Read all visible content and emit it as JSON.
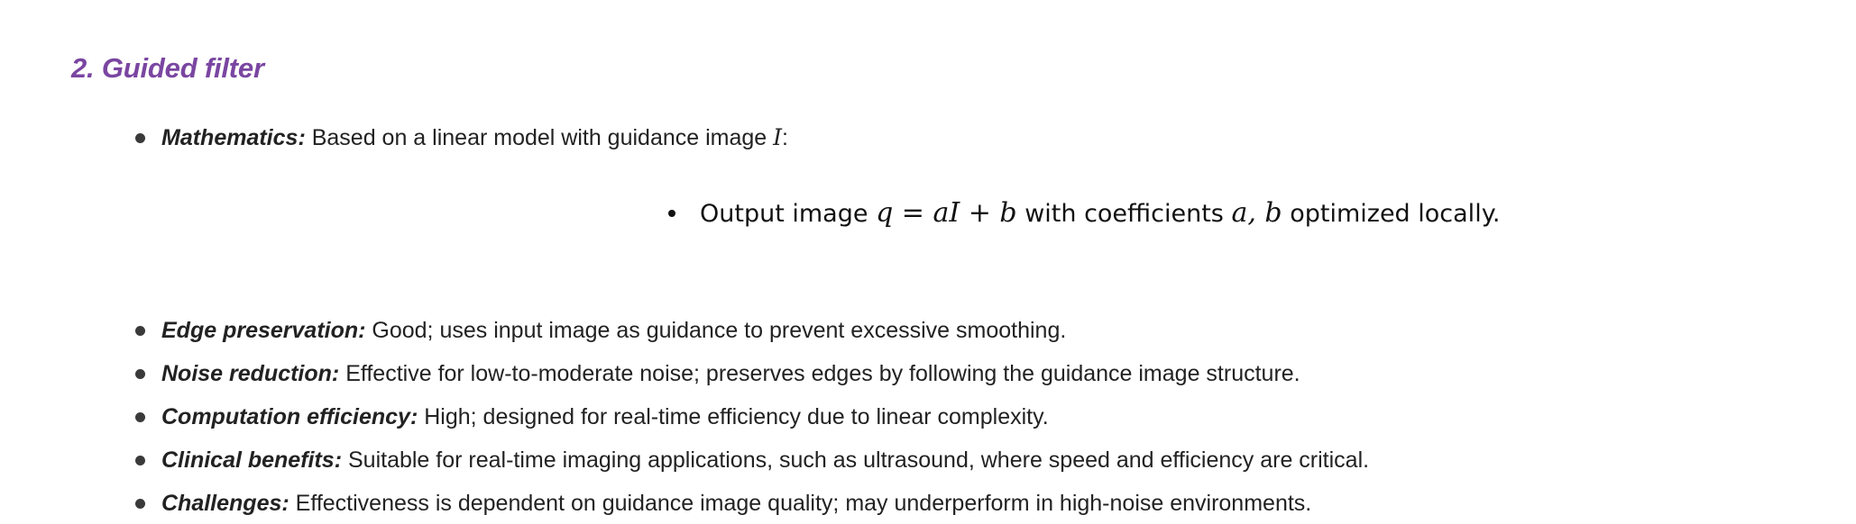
{
  "section": {
    "title": "2. Guided filter"
  },
  "mathematics": {
    "label": "Mathematics:",
    "text_before": "Based on a linear model with guidance image ",
    "var": "I",
    "text_after": ":"
  },
  "sub_item": {
    "text1": "Output image ",
    "formula": "q = aI + b",
    "text2": " with coefficients ",
    "coefficients": "a, b",
    "text3": " optimized locally."
  },
  "items": [
    {
      "label": "Edge preservation:",
      "text": " Good; uses input image as guidance to prevent excessive smoothing."
    },
    {
      "label": "Noise reduction:",
      "text": " Effective for low-to-moderate noise; preserves edges by following the guidance image structure."
    },
    {
      "label": "Computation efficiency:",
      "text": " High; designed for real-time efficiency due to linear complexity."
    },
    {
      "label": "Clinical benefits:",
      "text": " Suitable for real-time imaging applications, such as ultrasound, where speed and efficiency are critical."
    },
    {
      "label": "Challenges:",
      "text": " Effectiveness is dependent on guidance image quality; may underperform in high-noise environments."
    }
  ]
}
